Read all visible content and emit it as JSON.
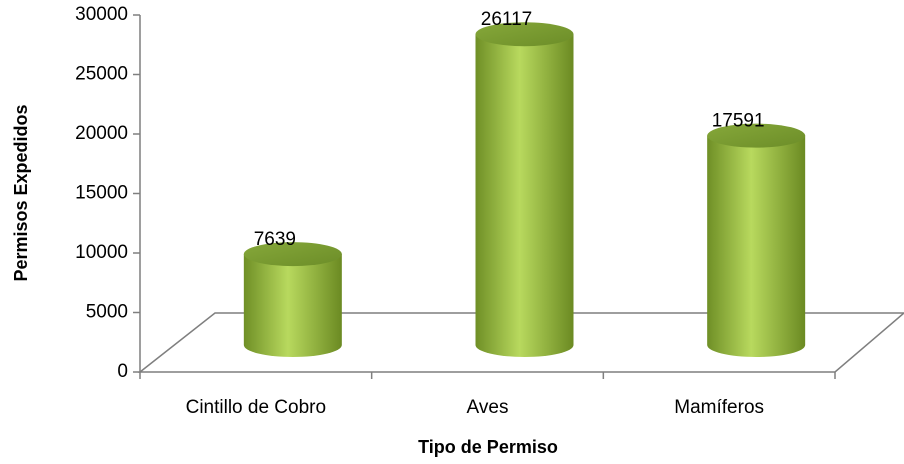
{
  "chart_data": {
    "type": "bar",
    "xlabel": "Tipo de Permiso",
    "ylabel": "Permisos Expedidos",
    "categories": [
      "Cintillo de Cobro",
      "Aves",
      "Mamíferos"
    ],
    "values": [
      7639,
      26117,
      17591
    ],
    "color": "#8db33a",
    "ylim": [
      0,
      30000
    ],
    "yticks": [
      0,
      5000,
      10000,
      15000,
      20000,
      25000,
      30000
    ]
  }
}
